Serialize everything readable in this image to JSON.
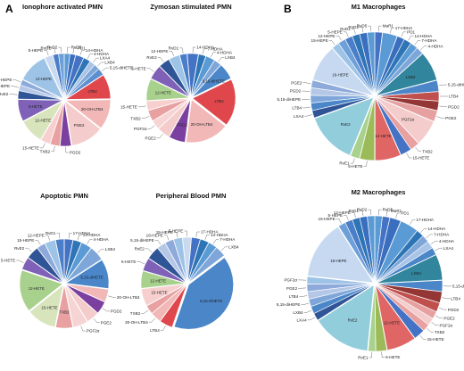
{
  "panels": [
    {
      "letter": "A"
    },
    {
      "letter": "B"
    }
  ],
  "chart_data": [
    {
      "type": "pie",
      "title": "Ionophore activated PMN",
      "slices": [
        {
          "label": "RvD5",
          "value": 2.0,
          "color": "#5b9bd5"
        },
        {
          "label": "PD1",
          "value": 2.0,
          "color": "#3a6fbf"
        },
        {
          "label": "14-HDHA",
          "value": 3.0,
          "color": "#4472c4"
        },
        {
          "label": "4-HDHA",
          "value": 2.5,
          "color": "#2e75b6"
        },
        {
          "label": "LXA4",
          "value": 2.0,
          "color": "#a9c4e6"
        },
        {
          "label": "LXB4",
          "value": 2.0,
          "color": "#7ea6d8"
        },
        {
          "label": "5,15-diHETE",
          "value": 2.5,
          "color": "#5a8fd0"
        },
        {
          "label": "LTB4",
          "value": 9.0,
          "color": "#e0474c"
        },
        {
          "label": "20-OH-LTB4",
          "value": 11.0,
          "color": "#f2b8b8"
        },
        {
          "label": "PGE2",
          "value": 12.0,
          "color": "#f4cccc"
        },
        {
          "label": "PGD2",
          "value": 4.0,
          "color": "#7b3fa0"
        },
        {
          "label": "TXB2",
          "value": 3.5,
          "color": "#e8a0a0"
        },
        {
          "label": "15-HETE",
          "value": 3.5,
          "color": "#f7cfcf"
        },
        {
          "label": "12-HETE",
          "value": 9.0,
          "color": "#d8e4bc"
        },
        {
          "label": "5-HETE",
          "value": 8.0,
          "color": "#7f62b8"
        },
        {
          "label": "RvE2",
          "value": 3.0,
          "color": "#2f5597"
        },
        {
          "label": "18-HEPE",
          "value": 2.0,
          "color": "#b4c7e7"
        },
        {
          "label": "15-HEPE",
          "value": 2.0,
          "color": "#8eaadb"
        },
        {
          "label": "12-HEPE",
          "value": 11.0,
          "color": "#9dc3e6"
        },
        {
          "label": "5-HEPE",
          "value": 3.0,
          "color": "#c9daf0"
        },
        {
          "label": "RvD1",
          "value": 2.0,
          "color": "#4a7ec9"
        },
        {
          "label": "RvD2",
          "value": 2.0,
          "color": "#6d9fd8"
        }
      ]
    },
    {
      "type": "pie",
      "title": "Zymosan stimulated PMN",
      "slices": [
        {
          "label": "14-HDHA",
          "value": 3.0,
          "color": "#4472c4"
        },
        {
          "label": "7-HDHA",
          "value": 2.0,
          "color": "#2e75b6"
        },
        {
          "label": "4-HDHA",
          "value": 2.5,
          "color": "#5b9bd5"
        },
        {
          "label": "LXB4",
          "value": 2.0,
          "color": "#7ea6d8"
        },
        {
          "label": "5,15-diHETE",
          "value": 4.5,
          "color": "#4a86c8"
        },
        {
          "label": "LTB4",
          "value": 13.0,
          "color": "#e0474c"
        },
        {
          "label": "20-OH-LTB4",
          "value": 12.0,
          "color": "#f2b8b8"
        },
        {
          "label": "PGD2",
          "value": 4.5,
          "color": "#7b3fa0"
        },
        {
          "label": "PGE2",
          "value": 3.5,
          "color": "#f4cccc"
        },
        {
          "label": "PGF2α",
          "value": 2.5,
          "color": "#f7d4d4"
        },
        {
          "label": "TXB2",
          "value": 3.0,
          "color": "#e8a0a0"
        },
        {
          "label": "15-HETE",
          "value": 2.5,
          "color": "#f7cfcf"
        },
        {
          "label": "12-HETE",
          "value": 6.0,
          "color": "#a9d18e"
        },
        {
          "label": "5-HETE",
          "value": 4.0,
          "color": "#7f62b8"
        },
        {
          "label": "RvE2",
          "value": 3.0,
          "color": "#2f5597"
        },
        {
          "label": "12-HEPE",
          "value": 3.0,
          "color": "#9dc3e6"
        },
        {
          "label": "RvD1",
          "value": 2.0,
          "color": "#4a7ec9"
        }
      ]
    },
    {
      "type": "pie",
      "title": "Apoptotic PMN",
      "slices": [
        {
          "label": "17-HDHA",
          "value": 2.0,
          "color": "#4472c4"
        },
        {
          "label": "14-HDHA",
          "value": 2.0,
          "color": "#2e75b6"
        },
        {
          "label": "4-HDHA",
          "value": 2.5,
          "color": "#5b9bd5"
        },
        {
          "label": "LXB4",
          "value": 3.5,
          "color": "#7ea6d8"
        },
        {
          "label": "5,15-diHETE",
          "value": 7.0,
          "color": "#4a86c8"
        },
        {
          "label": "20-OH-LTB4",
          "value": 3.0,
          "color": "#f2b8b8"
        },
        {
          "label": "PGD2",
          "value": 3.0,
          "color": "#7b3fa0"
        },
        {
          "label": "PGE2",
          "value": 3.0,
          "color": "#f4cccc"
        },
        {
          "label": "PGF2α",
          "value": 3.5,
          "color": "#f7d4d4"
        },
        {
          "label": "TXB2",
          "value": 4.0,
          "color": "#e8a0a0"
        },
        {
          "label": "15-HETE",
          "value": 7.0,
          "color": "#d8e4bc"
        },
        {
          "label": "12-HETE",
          "value": 10.0,
          "color": "#a9d18e"
        },
        {
          "label": "5-HETE",
          "value": 3.0,
          "color": "#7f62b8"
        },
        {
          "label": "RvE2",
          "value": 3.0,
          "color": "#2f5597"
        },
        {
          "label": "15-HEPE",
          "value": 2.0,
          "color": "#8eaadb"
        },
        {
          "label": "12-HEPE",
          "value": 2.5,
          "color": "#9dc3e6"
        },
        {
          "label": "RvD1",
          "value": 2.0,
          "color": "#4a7ec9"
        }
      ]
    },
    {
      "type": "pie",
      "title": "Peripheral Blood PMN",
      "slices": [
        {
          "label": "17-HDHA",
          "value": 2.0,
          "color": "#4472c4"
        },
        {
          "label": "14-HDHA",
          "value": 2.0,
          "color": "#2e75b6"
        },
        {
          "label": "7-HDHA",
          "value": 2.0,
          "color": "#5b9bd5"
        },
        {
          "label": "LXB4",
          "value": 2.5,
          "color": "#7ea6d8"
        },
        {
          "label": "5,15-diHETE",
          "value": 26.0,
          "color": "#4a86c8"
        },
        {
          "label": "LTB4",
          "value": 3.0,
          "color": "#e0474c"
        },
        {
          "label": "20-OH-LTB4",
          "value": 2.5,
          "color": "#f2b8b8"
        },
        {
          "label": "TXB2",
          "value": 2.0,
          "color": "#e8a0a0"
        },
        {
          "label": "15-HETE",
          "value": 4.0,
          "color": "#f7cfcf"
        },
        {
          "label": "12-HETE",
          "value": 4.0,
          "color": "#a9d18e"
        },
        {
          "label": "5-HETE",
          "value": 3.0,
          "color": "#7f62b8"
        },
        {
          "label": "RvE2",
          "value": 3.0,
          "color": "#2f5597"
        },
        {
          "label": "5,15-diHEPE",
          "value": 2.0,
          "color": "#b4c7e7"
        },
        {
          "label": "18-HEPE",
          "value": 2.0,
          "color": "#8eaadb"
        },
        {
          "label": "15-HEPE",
          "value": 2.0,
          "color": "#9dc3e6"
        },
        {
          "label": "5-HEPE",
          "value": 2.0,
          "color": "#c9daf0"
        }
      ]
    },
    {
      "type": "pie",
      "title": "M1 Macrophages",
      "slices": [
        {
          "label": "MaR1",
          "value": 2.0,
          "color": "#4472c4"
        },
        {
          "label": "17-HDHA",
          "value": 4.0,
          "color": "#5b9bd5"
        },
        {
          "label": "PD1",
          "value": 2.0,
          "color": "#3a6fbf"
        },
        {
          "label": "14-HDHA",
          "value": 2.0,
          "color": "#2e75b6"
        },
        {
          "label": "7-HDHA",
          "value": 2.0,
          "color": "#5b9bd5"
        },
        {
          "label": "4-HDHA",
          "value": 2.0,
          "color": "#7ea6d8"
        },
        {
          "label": "LXB4",
          "value": 8.0,
          "color": "#31859c"
        },
        {
          "label": "5,15-diHETE",
          "value": 3.0,
          "color": "#4a86c8"
        },
        {
          "label": "LTB4",
          "value": 2.5,
          "color": "#c0504d"
        },
        {
          "label": "PGD2",
          "value": 2.5,
          "color": "#943634"
        },
        {
          "label": "PGE2",
          "value": 3.0,
          "color": "#e6a0a0"
        },
        {
          "label": "PGF2α",
          "value": 7.0,
          "color": "#f4cccc"
        },
        {
          "label": "TXB2",
          "value": 2.5,
          "color": "#e8a0a0"
        },
        {
          "label": "15-HETE",
          "value": 3.0,
          "color": "#4472c4"
        },
        {
          "label": "12-HETE",
          "value": 7.0,
          "color": "#e06666"
        },
        {
          "label": "5-HETE",
          "value": 4.0,
          "color": "#9bbb59"
        },
        {
          "label": "RvE1",
          "value": 2.5,
          "color": "#a9d18e"
        },
        {
          "label": "RvE2",
          "value": 14.0,
          "color": "#92cddc"
        },
        {
          "label": "LXA4",
          "value": 2.0,
          "color": "#2f5597"
        },
        {
          "label": "LTB4",
          "value": 2.0,
          "color": "#4a86c8"
        },
        {
          "label": "5,15-diHEPE",
          "value": 2.0,
          "color": "#7ea6d8"
        },
        {
          "label": "PGD2",
          "value": 2.0,
          "color": "#b4c7e7"
        },
        {
          "label": "PGE2",
          "value": 2.0,
          "color": "#8eaadb"
        },
        {
          "label": "18-HEPE",
          "value": 10.0,
          "color": "#c6d9f1"
        },
        {
          "label": "15-HEPE",
          "value": 2.0,
          "color": "#9dc3e6"
        },
        {
          "label": "12-HEPE",
          "value": 2.0,
          "color": "#6d9fd8"
        },
        {
          "label": "5-HEPE",
          "value": 2.0,
          "color": "#4a7ec9"
        },
        {
          "label": "RvD1",
          "value": 2.0,
          "color": "#2e75b6"
        },
        {
          "label": "RvD2",
          "value": 2.0,
          "color": "#3a6fbf"
        },
        {
          "label": "RvD5",
          "value": 2.0,
          "color": "#5b9bd5"
        }
      ]
    },
    {
      "type": "pie",
      "title": "M2 Macrophages",
      "slices": [
        {
          "label": "RvD5",
          "value": 2.0,
          "color": "#5b9bd5"
        },
        {
          "label": "MaR1",
          "value": 2.0,
          "color": "#4472c4"
        },
        {
          "label": "PD1",
          "value": 3.0,
          "color": "#3a6fbf"
        },
        {
          "label": "17-HDHA",
          "value": 5.0,
          "color": "#5b9bd5"
        },
        {
          "label": "14-HDHA",
          "value": 2.0,
          "color": "#2e75b6"
        },
        {
          "label": "7-HDHA",
          "value": 2.0,
          "color": "#7ea6d8"
        },
        {
          "label": "4-HDHA",
          "value": 2.0,
          "color": "#a9c4e6"
        },
        {
          "label": "LXA4",
          "value": 2.0,
          "color": "#4a86c8"
        },
        {
          "label": "LXB4",
          "value": 7.0,
          "color": "#31859c"
        },
        {
          "label": "5,15-diHETE",
          "value": 3.0,
          "color": "#4a86c8"
        },
        {
          "label": "LTB4",
          "value": 3.0,
          "color": "#943634"
        },
        {
          "label": "PGD2",
          "value": 2.5,
          "color": "#c0504d"
        },
        {
          "label": "PGE2",
          "value": 2.0,
          "color": "#e6a0a0"
        },
        {
          "label": "PGF2α",
          "value": 2.0,
          "color": "#f4cccc"
        },
        {
          "label": "TXB2",
          "value": 2.0,
          "color": "#e8a0a0"
        },
        {
          "label": "15-HETE",
          "value": 3.0,
          "color": "#4472c4"
        },
        {
          "label": "12-HETE",
          "value": 8.0,
          "color": "#e06666"
        },
        {
          "label": "5-HETE",
          "value": 3.0,
          "color": "#9bbb59"
        },
        {
          "label": "RvE1",
          "value": 2.0,
          "color": "#a9d18e"
        },
        {
          "label": "RvE2",
          "value": 16.0,
          "color": "#92cddc"
        },
        {
          "label": "LXA4",
          "value": 2.0,
          "color": "#2f5597"
        },
        {
          "label": "LXB4",
          "value": 2.0,
          "color": "#4a86c8"
        },
        {
          "label": "5,15-diHEPE",
          "value": 2.0,
          "color": "#7ea6d8"
        },
        {
          "label": "LTB4",
          "value": 2.0,
          "color": "#b4c7e7"
        },
        {
          "label": "PGE2",
          "value": 2.0,
          "color": "#8eaadb"
        },
        {
          "label": "PGF2α",
          "value": 2.0,
          "color": "#9dc3e6"
        },
        {
          "label": "18-HEPE",
          "value": 16.0,
          "color": "#c6d9f1"
        },
        {
          "label": "15-HEPE",
          "value": 2.0,
          "color": "#6d9fd8"
        },
        {
          "label": "5-HEPE",
          "value": 2.0,
          "color": "#4a7ec9"
        },
        {
          "label": "12-HEPE",
          "value": 2.0,
          "color": "#2e75b6"
        },
        {
          "label": "RvD1",
          "value": 2.0,
          "color": "#3a6fbf"
        },
        {
          "label": "RvD2",
          "value": 2.0,
          "color": "#5b9bd5"
        }
      ]
    }
  ]
}
